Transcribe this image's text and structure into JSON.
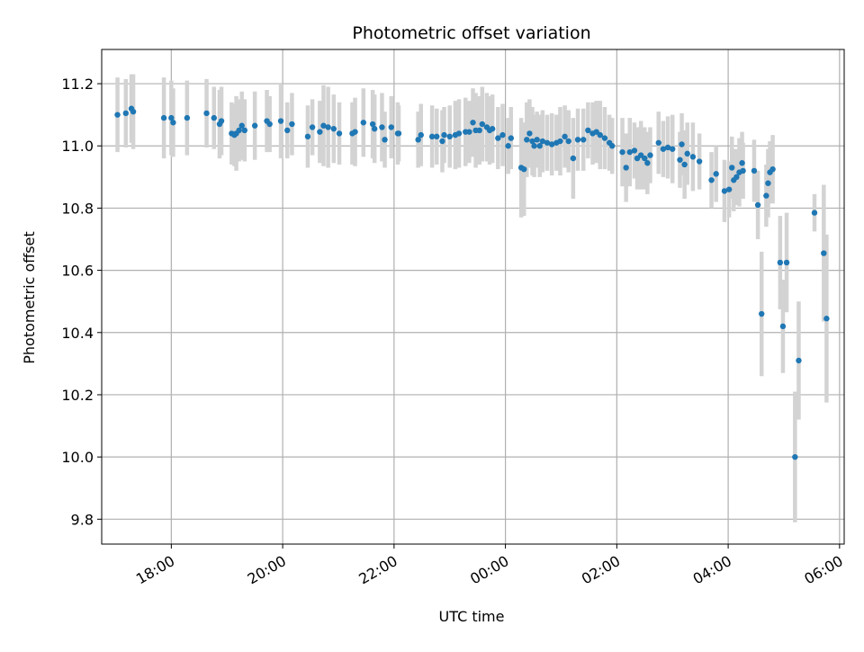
{
  "chart_data": {
    "type": "scatter",
    "title": "Photometric offset variation",
    "xlabel": "UTC time",
    "ylabel": "Photometric offset",
    "x_unit": "UTC, hours from 00:00 of second night (negative = previous evening)",
    "xlim": [
      "16:45",
      "06:05"
    ],
    "ylim": [
      9.72,
      11.31
    ],
    "xticks": [
      "18:00",
      "20:00",
      "22:00",
      "00:00",
      "02:00",
      "04:00",
      "06:00"
    ],
    "yticks": [
      "9.8",
      "10.0",
      "10.2",
      "10.4",
      "10.6",
      "10.8",
      "11.0",
      "11.2"
    ],
    "grid": true,
    "colors": {
      "point": "#1f77b4",
      "errorbar": "#d3d3d3",
      "grid": "#b0b0b0"
    },
    "series": [
      {
        "points": [
          [
            "17:02",
            11.1,
            0.12
          ],
          [
            "17:11",
            11.105,
            0.11
          ],
          [
            "17:17",
            11.12,
            0.11
          ],
          [
            "17:19",
            11.11,
            0.12
          ],
          [
            "17:52",
            11.09,
            0.13
          ],
          [
            "18:00",
            11.09,
            0.12
          ],
          [
            "18:02",
            11.075,
            0.11
          ],
          [
            "18:17",
            11.09,
            0.12
          ],
          [
            "18:38",
            11.105,
            0.11
          ],
          [
            "18:46",
            11.09,
            0.1
          ],
          [
            "18:52",
            11.07,
            0.11
          ],
          [
            "18:54",
            11.08,
            0.11
          ],
          [
            "19:05",
            11.04,
            0.1
          ],
          [
            "19:08",
            11.035,
            0.1
          ],
          [
            "19:10",
            11.04,
            0.12
          ],
          [
            "19:13",
            11.05,
            0.1
          ],
          [
            "19:16",
            11.065,
            0.11
          ],
          [
            "19:19",
            11.05,
            0.1
          ],
          [
            "19:30",
            11.065,
            0.11
          ],
          [
            "19:43",
            11.08,
            0.1
          ],
          [
            "19:46",
            11.07,
            0.09
          ],
          [
            "19:58",
            11.08,
            0.12
          ],
          [
            "20:05",
            11.05,
            0.09
          ],
          [
            "20:10",
            11.07,
            0.1
          ],
          [
            "20:27",
            11.03,
            0.1
          ],
          [
            "20:32",
            11.06,
            0.09
          ],
          [
            "20:40",
            11.045,
            0.1
          ],
          [
            "20:44",
            11.065,
            0.13
          ],
          [
            "20:49",
            11.06,
            0.13
          ],
          [
            "20:55",
            11.055,
            0.11
          ],
          [
            "21:01",
            11.04,
            0.1
          ],
          [
            "21:15",
            11.04,
            0.1
          ],
          [
            "21:18",
            11.045,
            0.11
          ],
          [
            "21:27",
            11.075,
            0.11
          ],
          [
            "21:37",
            11.07,
            0.11
          ],
          [
            "21:39",
            11.055,
            0.11
          ],
          [
            "21:47",
            11.06,
            0.11
          ],
          [
            "21:50",
            11.02,
            0.09
          ],
          [
            "21:57",
            11.06,
            0.1
          ],
          [
            "22:04",
            11.04,
            0.1
          ],
          [
            "22:05",
            11.04,
            0.09
          ],
          [
            "22:26",
            11.02,
            0.09
          ],
          [
            "22:29",
            11.035,
            0.1
          ],
          [
            "22:41",
            11.03,
            0.1
          ],
          [
            "22:46",
            11.03,
            0.09
          ],
          [
            "22:52",
            11.015,
            0.1
          ],
          [
            "22:54",
            11.035,
            0.09
          ],
          [
            "23:00",
            11.03,
            0.1
          ],
          [
            "23:06",
            11.035,
            0.11
          ],
          [
            "23:10",
            11.04,
            0.11
          ],
          [
            "23:17",
            11.045,
            0.11
          ],
          [
            "23:21",
            11.045,
            0.1
          ],
          [
            "23:25",
            11.075,
            0.11
          ],
          [
            "23:28",
            11.05,
            0.12
          ],
          [
            "23:32",
            11.05,
            0.11
          ],
          [
            "23:35",
            11.07,
            0.12
          ],
          [
            "23:40",
            11.06,
            0.11
          ],
          [
            "23:43",
            11.05,
            0.11
          ],
          [
            "23:46",
            11.055,
            0.11
          ],
          [
            "23:52",
            11.025,
            0.1
          ],
          [
            "23:57",
            11.035,
            0.1
          ],
          [
            "00:03",
            11.0,
            0.09
          ],
          [
            "00:06",
            11.025,
            0.1
          ],
          [
            "00:17",
            10.93,
            0.16
          ],
          [
            "00:20",
            10.925,
            0.15
          ],
          [
            "00:23",
            11.02,
            0.12
          ],
          [
            "00:26",
            11.04,
            0.11
          ],
          [
            "00:29",
            11.015,
            0.11
          ],
          [
            "00:31",
            11.0,
            0.1
          ],
          [
            "00:34",
            11.02,
            0.09
          ],
          [
            "00:37",
            11.0,
            0.1
          ],
          [
            "00:40",
            11.015,
            0.1
          ],
          [
            "00:45",
            11.01,
            0.09
          ],
          [
            "00:50",
            11.005,
            0.1
          ],
          [
            "00:55",
            11.01,
            0.09
          ],
          [
            "00:59",
            11.015,
            0.11
          ],
          [
            "01:04",
            11.03,
            0.1
          ],
          [
            "01:08",
            11.015,
            0.1
          ],
          [
            "01:13",
            10.96,
            0.13
          ],
          [
            "01:18",
            11.02,
            0.1
          ],
          [
            "01:24",
            11.02,
            0.1
          ],
          [
            "01:29",
            11.05,
            0.09
          ],
          [
            "01:34",
            11.04,
            0.1
          ],
          [
            "01:38",
            11.045,
            0.1
          ],
          [
            "01:42",
            11.035,
            0.11
          ],
          [
            "01:47",
            11.025,
            0.1
          ],
          [
            "01:52",
            11.01,
            0.09
          ],
          [
            "01:55",
            11.0,
            0.09
          ],
          [
            "02:06",
            10.98,
            0.11
          ],
          [
            "02:10",
            10.93,
            0.11
          ],
          [
            "02:14",
            10.98,
            0.11
          ],
          [
            "02:19",
            10.985,
            0.09
          ],
          [
            "02:22",
            10.96,
            0.1
          ],
          [
            "02:26",
            10.97,
            0.11
          ],
          [
            "02:30",
            10.96,
            0.1
          ],
          [
            "02:33",
            10.945,
            0.1
          ],
          [
            "02:36",
            10.97,
            0.09
          ],
          [
            "02:45",
            11.01,
            0.1
          ],
          [
            "02:50",
            10.99,
            0.09
          ],
          [
            "02:55",
            10.995,
            0.1
          ],
          [
            "03:00",
            10.99,
            0.11
          ],
          [
            "03:08",
            10.955,
            0.09
          ],
          [
            "03:10",
            11.005,
            0.1
          ],
          [
            "03:13",
            10.94,
            0.11
          ],
          [
            "03:16",
            10.975,
            0.1
          ],
          [
            "03:22",
            10.965,
            0.11
          ],
          [
            "03:29",
            10.95,
            0.09
          ],
          [
            "03:42",
            10.89,
            0.09
          ],
          [
            "03:47",
            10.91,
            0.09
          ],
          [
            "03:56",
            10.855,
            0.1
          ],
          [
            "04:01",
            10.86,
            0.09
          ],
          [
            "04:04",
            10.93,
            0.1
          ],
          [
            "04:06",
            10.89,
            0.1
          ],
          [
            "04:09",
            10.9,
            0.09
          ],
          [
            "04:12",
            10.915,
            0.11
          ],
          [
            "04:15",
            10.945,
            0.1
          ],
          [
            "04:16",
            10.92,
            0.09
          ],
          [
            "04:28",
            10.92,
            0.1
          ],
          [
            "04:32",
            10.81,
            0.11
          ],
          [
            "04:36",
            10.46,
            0.2
          ],
          [
            "04:41",
            10.84,
            0.1
          ],
          [
            "04:43",
            10.88,
            0.11
          ],
          [
            "04:45",
            10.915,
            0.1
          ],
          [
            "04:48",
            10.925,
            0.11
          ],
          [
            "04:56",
            10.625,
            0.15
          ],
          [
            "04:59",
            10.42,
            0.15
          ],
          [
            "05:03",
            10.625,
            0.16
          ],
          [
            "05:12",
            10.0,
            0.21
          ],
          [
            "05:16",
            10.31,
            0.19
          ],
          [
            "05:33",
            10.785,
            0.06
          ],
          [
            "05:43",
            10.655,
            0.22
          ],
          [
            "05:46",
            10.445,
            0.27
          ]
        ]
      }
    ]
  }
}
